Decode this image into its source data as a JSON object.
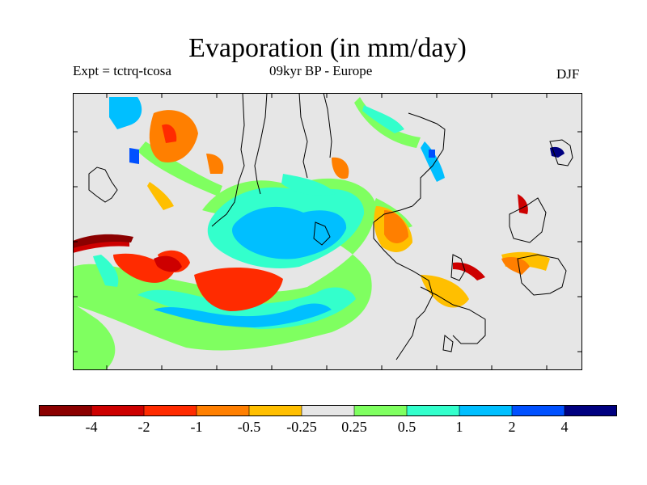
{
  "title": "Evaporation (in mm/day)",
  "subtitle_left": "Expt = tctrq-tcosa",
  "subtitle_center": "09kyr BP - Europe",
  "subtitle_right": "DJF",
  "colorbar": {
    "colors": [
      "#8b0000",
      "#cd0000",
      "#ff2b00",
      "#ff7f00",
      "#ffbf00",
      "#e6e6e6",
      "#7fff60",
      "#33ffcc",
      "#00bfff",
      "#0050ff",
      "#000080"
    ],
    "labels": [
      "-4",
      "-2",
      "-1",
      "-0.5",
      "-0.25",
      "0.25",
      "0.5",
      "1",
      "2",
      "4"
    ]
  },
  "colors": {
    "ocean_bg": "#e6e6e6",
    "coastline": "#000000"
  }
}
